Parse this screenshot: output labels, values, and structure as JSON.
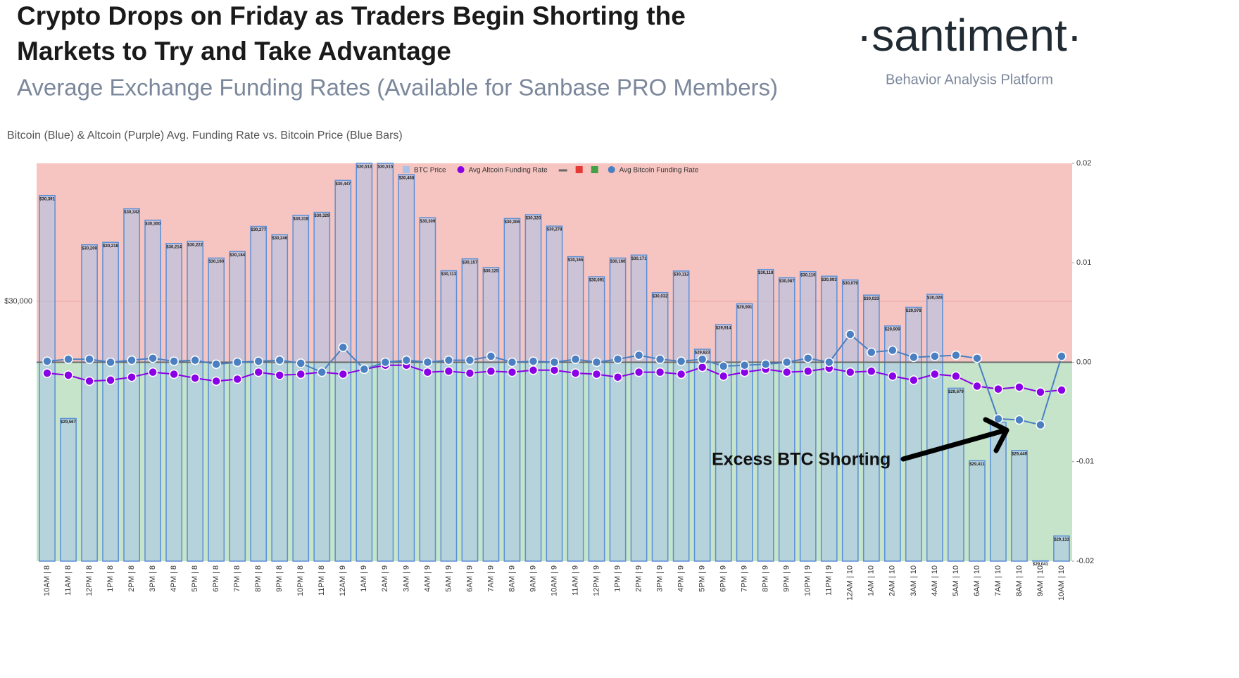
{
  "header": {
    "title": "Crypto Drops on Friday as Traders Begin Shorting the Markets to Try and Take Advantage",
    "subtitle": "Average Exchange Funding Rates (Available for Sanbase PRO Members)",
    "brand": "·santiment·",
    "tagline": "Behavior Analysis Platform"
  },
  "chart_data": {
    "type": "bar",
    "title": "Bitcoin (Blue) & Altcoin (Purple) Avg. Funding Rate vs. Bitcoin Price (Blue Bars)",
    "legend": "top",
    "grid": true,
    "positive_color": "#f7c5c1",
    "negative_color": "#c5e4c9",
    "zero_line_color": "#666666",
    "annotation": "Excess BTC Shorting",
    "categories": [
      "10AM | 8",
      "11AM | 8",
      "12PM | 8",
      "1PM | 8",
      "2PM | 8",
      "3PM | 8",
      "4PM | 8",
      "5PM | 8",
      "6PM | 8",
      "7PM | 8",
      "8PM | 8",
      "9PM | 8",
      "10PM | 8",
      "11PM | 8",
      "12AM | 9",
      "1AM | 9",
      "2AM | 9",
      "3AM | 9",
      "4AM | 9",
      "5AM | 9",
      "6AM | 9",
      "7AM | 9",
      "8AM | 9",
      "9AM | 9",
      "10AM | 9",
      "11AM | 9",
      "12PM | 9",
      "1PM | 9",
      "2PM | 9",
      "3PM | 9",
      "4PM | 9",
      "5PM | 9",
      "6PM | 9",
      "7PM | 9",
      "8PM | 9",
      "9PM | 9",
      "10PM | 9",
      "11PM | 9",
      "12AM | 10",
      "1AM | 10",
      "2AM | 10",
      "3AM | 10",
      "4AM | 10",
      "5AM | 10",
      "6AM | 10",
      "7AM | 10",
      "8AM | 10",
      "9AM | 10",
      "10AM | 10"
    ],
    "ylim": [
      29040,
      30510
    ],
    "yticks": [
      {
        "value": 30000,
        "label": "$30,000"
      }
    ],
    "y2lim": [
      -0.02,
      0.02
    ],
    "y2ticks": [
      0.02,
      0.01,
      {
        "value": 0,
        "label": "0.00"
      },
      -0.01,
      -0.02
    ],
    "series": [
      {
        "name": "BTC Price",
        "type": "bar",
        "axis": "y",
        "color": "#a9c3e8",
        "stroke": "#5b8fd6",
        "values": [
          30391,
          29567,
          30209,
          30218,
          30342,
          30300,
          30214,
          30222,
          30160,
          30184,
          30277,
          30246,
          30318,
          30329,
          30447,
          30513,
          30515,
          30468,
          30309,
          30113,
          30157,
          30125,
          30306,
          30320,
          30278,
          30165,
          30091,
          30160,
          30171,
          30032,
          30112,
          29823,
          29914,
          29991,
          30118,
          30087,
          30110,
          30093,
          30079,
          30023,
          29909,
          29978,
          30026,
          29679,
          29411,
          29553,
          29449,
          29041,
          29133
        ],
        "value_labels": [
          "$30,391",
          "$29,567",
          "$30,209",
          "$30,218",
          "$30,342",
          "$30,300",
          "$30,214",
          "$30,222",
          "$30,160",
          "$30,184",
          "$30,277",
          "$30,246",
          "$30,318",
          "$30,329",
          "$30,447",
          "$30,513",
          "$30,515",
          "$30,468",
          "$30,309",
          "$30,113",
          "$30,157",
          "$30,125",
          "$30,306",
          "$30,320",
          "$30,278",
          "$30,165",
          "$30,091",
          "$30,160",
          "$30,171",
          "$30,032",
          "$30,112",
          "$29,823",
          "$29,914",
          "$29,991",
          "$30,118",
          "$30,087",
          "$30,110",
          "$30,093",
          "$30,079",
          "$30,023",
          "$29,909",
          "$29,978",
          "$30,026",
          "$29,679",
          "$29,411",
          null,
          "$29,449",
          "$29,041",
          "$29,133"
        ]
      },
      {
        "name": "Avg Altcoin Funding Rate",
        "type": "line",
        "axis": "y2",
        "color": "#8a00e6",
        "values": [
          -0.0011,
          -0.0013,
          -0.0019,
          -0.0018,
          -0.0015,
          -0.001,
          -0.0012,
          -0.0016,
          -0.0019,
          -0.0017,
          -0.001,
          -0.0013,
          -0.0012,
          -0.001,
          -0.0012,
          -0.0007,
          -0.0003,
          -0.0003,
          -0.001,
          -0.0009,
          -0.0011,
          -0.0009,
          -0.001,
          -0.0008,
          -0.0008,
          -0.0011,
          -0.0012,
          -0.0015,
          -0.001,
          -0.001,
          -0.0012,
          -0.0005,
          -0.0014,
          -0.001,
          -0.0007,
          -0.001,
          -0.0009,
          -0.0006,
          -0.001,
          -0.0009,
          -0.0014,
          -0.0018,
          -0.0012,
          -0.0014,
          -0.0024,
          -0.0027,
          -0.0025,
          -0.003,
          -0.0028
        ]
      },
      {
        "name": "Avg Bitcoin Funding Rate",
        "type": "line",
        "axis": "y2",
        "color": "#4a7fc1",
        "values": [
          0.0001,
          0.0003,
          0.0003,
          0,
          0.0002,
          0.0004,
          0.0001,
          0.0002,
          -0.0002,
          0,
          0.0001,
          0.0002,
          -0.0001,
          -0.001,
          0.0015,
          -0.0007,
          0,
          0.0002,
          0,
          0.0002,
          0.0002,
          0.0006,
          0,
          0.0001,
          0,
          0.0003,
          0,
          0.0003,
          0.0007,
          0.0003,
          0.0001,
          0.0003,
          -0.0004,
          -0.0003,
          -0.0002,
          0,
          0.0004,
          0,
          0.0028,
          0.001,
          0.0012,
          0.0005,
          0.0006,
          0.0007,
          0.0004,
          -0.0057,
          -0.0058,
          -0.0063,
          0.0006
        ]
      }
    ]
  }
}
